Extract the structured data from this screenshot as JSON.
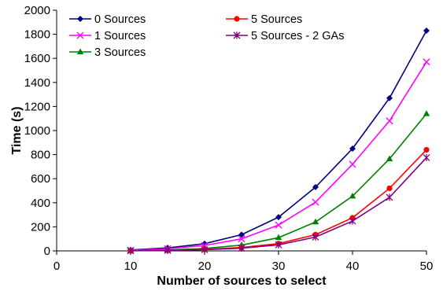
{
  "chart_data": {
    "type": "line",
    "title": "",
    "xlabel": "Number of sources to select",
    "ylabel": "Time (s)",
    "xlim": [
      0,
      50
    ],
    "ylim": [
      0,
      2000
    ],
    "xticks": [
      0,
      10,
      20,
      30,
      40,
      50
    ],
    "yticks": [
      0,
      200,
      400,
      600,
      800,
      1000,
      1200,
      1400,
      1600,
      1800,
      2000
    ],
    "grid": false,
    "legend_position": "top-left",
    "x": [
      10,
      15,
      20,
      25,
      30,
      35,
      40,
      45,
      50
    ],
    "series": [
      {
        "name": "0 Sources",
        "color": "#000080",
        "marker": "diamond",
        "values": [
          8,
          25,
          60,
          135,
          280,
          530,
          850,
          1270,
          1830
        ]
      },
      {
        "name": "1 Sources",
        "color": "#FF00FF",
        "marker": "x",
        "values": [
          5,
          18,
          45,
          100,
          215,
          405,
          720,
          1080,
          1570
        ]
      },
      {
        "name": "3 Sources",
        "color": "#008000",
        "marker": "triangle",
        "values": [
          2,
          8,
          20,
          48,
          110,
          240,
          455,
          765,
          1140
        ]
      },
      {
        "name": "5 Sources",
        "color": "#FF0000",
        "marker": "circle",
        "values": [
          1,
          5,
          12,
          28,
          60,
          135,
          275,
          520,
          840
        ]
      },
      {
        "name": "5 Sources - 2 GAs",
        "color": "#800080",
        "marker": "star",
        "values": [
          1,
          4,
          10,
          22,
          50,
          115,
          248,
          445,
          775
        ]
      }
    ]
  }
}
